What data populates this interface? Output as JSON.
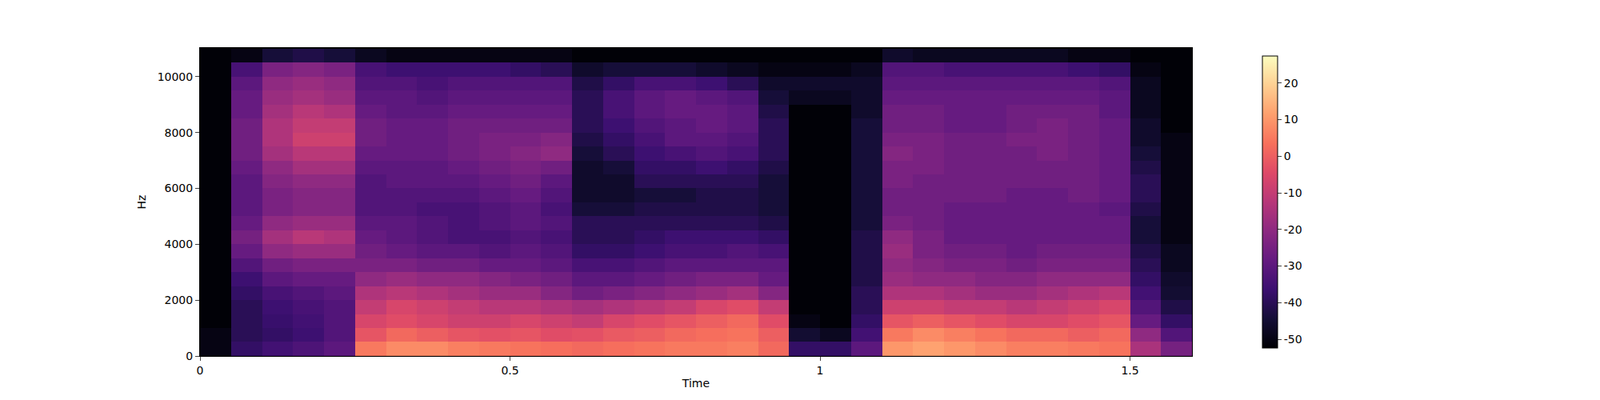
{
  "chart_data": {
    "type": "heatmap",
    "x_label": "Time",
    "y_label": "Hz",
    "xlim": [
      0,
      1.6
    ],
    "xticks": [
      0,
      0.5,
      1,
      1.5
    ],
    "ylim": [
      0,
      11025
    ],
    "yticks": [
      0,
      2000,
      4000,
      6000,
      8000,
      10000
    ],
    "colorbar_range": [
      -52.4,
      27.4
    ],
    "colorbar_ticks": [
      -50,
      -40,
      -30,
      -20,
      -10,
      0,
      10,
      20
    ],
    "x": [
      0.025,
      0.075,
      0.125,
      0.175,
      0.225,
      0.275,
      0.325,
      0.375,
      0.425,
      0.475,
      0.525,
      0.575,
      0.625,
      0.675,
      0.725,
      0.775,
      0.825,
      0.875,
      0.925,
      0.975,
      1.025,
      1.075,
      1.125,
      1.175,
      1.225,
      1.275,
      1.325,
      1.375,
      1.425,
      1.475,
      1.525,
      1.575
    ],
    "y": [
      250,
      750,
      1250,
      1750,
      2250,
      2750,
      3250,
      3750,
      4250,
      4750,
      5250,
      5750,
      6250,
      6750,
      7250,
      7750,
      8250,
      8750,
      9250,
      9750,
      10250,
      10750
    ],
    "z": [
      [
        -50,
        -38,
        -35,
        -33,
        -30,
        5,
        8,
        8,
        6,
        5,
        4,
        3,
        2,
        3,
        4,
        5,
        5,
        6,
        2,
        -38,
        -38,
        -30,
        10,
        12,
        10,
        8,
        6,
        6,
        5,
        4,
        -15,
        -25
      ],
      [
        -50,
        -40,
        -38,
        -36,
        -32,
        -2,
        2,
        0,
        -2,
        -3,
        -2,
        -4,
        -3,
        -1,
        0,
        2,
        3,
        4,
        0,
        -45,
        -48,
        -35,
        5,
        8,
        6,
        4,
        2,
        2,
        0,
        2,
        -20,
        -32
      ],
      [
        -52,
        -40,
        -37,
        -35,
        -32,
        -6,
        -4,
        -6,
        -8,
        -8,
        -6,
        -8,
        -10,
        -6,
        -4,
        -2,
        0,
        2,
        -4,
        -50,
        -52,
        -38,
        -2,
        0,
        -2,
        -4,
        -6,
        -6,
        -4,
        -2,
        -28,
        -38
      ],
      [
        -52,
        -40,
        -36,
        -34,
        -32,
        -10,
        -6,
        -8,
        -10,
        -12,
        -12,
        -14,
        -16,
        -14,
        -12,
        -10,
        -6,
        -4,
        -10,
        -52,
        -52,
        -40,
        -8,
        -8,
        -10,
        -10,
        -12,
        -10,
        -8,
        -6,
        -32,
        -42
      ],
      [
        -52,
        -38,
        -34,
        -32,
        -30,
        -14,
        -12,
        -14,
        -16,
        -18,
        -18,
        -22,
        -26,
        -24,
        -22,
        -20,
        -18,
        -16,
        -22,
        -52,
        -52,
        -40,
        -14,
        -14,
        -16,
        -18,
        -18,
        -16,
        -14,
        -12,
        -35,
        -45
      ],
      [
        -52,
        -36,
        -30,
        -28,
        -28,
        -20,
        -18,
        -20,
        -20,
        -22,
        -24,
        -26,
        -30,
        -30,
        -28,
        -26,
        -24,
        -24,
        -28,
        -52,
        -52,
        -42,
        -18,
        -20,
        -20,
        -22,
        -22,
        -20,
        -20,
        -20,
        -38,
        -46
      ],
      [
        -52,
        -32,
        -26,
        -24,
        -24,
        -24,
        -24,
        -26,
        -26,
        -28,
        -28,
        -30,
        -34,
        -34,
        -32,
        -30,
        -30,
        -30,
        -30,
        -52,
        -52,
        -42,
        -20,
        -22,
        -24,
        -24,
        -26,
        -24,
        -24,
        -24,
        -40,
        -48
      ],
      [
        -52,
        -28,
        -20,
        -18,
        -18,
        -26,
        -28,
        -30,
        -30,
        -32,
        -30,
        -32,
        -38,
        -38,
        -36,
        -34,
        -34,
        -32,
        -34,
        -52,
        -52,
        -42,
        -18,
        -24,
        -26,
        -26,
        -28,
        -26,
        -26,
        -26,
        -42,
        -48
      ],
      [
        -52,
        -25,
        -16,
        -12,
        -14,
        -28,
        -30,
        -32,
        -34,
        -34,
        -32,
        -34,
        -40,
        -40,
        -38,
        -36,
        -36,
        -36,
        -38,
        -52,
        -52,
        -42,
        -20,
        -24,
        -28,
        -28,
        -28,
        -28,
        -28,
        -28,
        -44,
        -50
      ],
      [
        -52,
        -28,
        -20,
        -18,
        -18,
        -30,
        -30,
        -32,
        -34,
        -32,
        -30,
        -32,
        -40,
        -40,
        -40,
        -40,
        -40,
        -40,
        -42,
        -52,
        -52,
        -44,
        -24,
        -26,
        -28,
        -28,
        -28,
        -28,
        -28,
        -28,
        -44,
        -50
      ],
      [
        -52,
        -30,
        -24,
        -22,
        -22,
        -32,
        -32,
        -34,
        -34,
        -32,
        -30,
        -34,
        -44,
        -44,
        -42,
        -42,
        -42,
        -42,
        -44,
        -52,
        -52,
        -44,
        -26,
        -26,
        -28,
        -28,
        -28,
        -28,
        -28,
        -30,
        -42,
        -50
      ],
      [
        -52,
        -30,
        -24,
        -22,
        -22,
        -32,
        -32,
        -32,
        -32,
        -30,
        -28,
        -32,
        -46,
        -46,
        -44,
        -44,
        -42,
        -42,
        -44,
        -52,
        -52,
        -44,
        -26,
        -26,
        -26,
        -26,
        -28,
        -28,
        -26,
        -28,
        -40,
        -50
      ],
      [
        -52,
        -30,
        -22,
        -20,
        -20,
        -32,
        -30,
        -30,
        -30,
        -28,
        -26,
        -30,
        -46,
        -46,
        -40,
        -40,
        -40,
        -40,
        -44,
        -52,
        -52,
        -44,
        -24,
        -26,
        -26,
        -26,
        -26,
        -26,
        -26,
        -28,
        -40,
        -50
      ],
      [
        -52,
        -28,
        -20,
        -16,
        -16,
        -30,
        -30,
        -30,
        -28,
        -26,
        -24,
        -26,
        -46,
        -44,
        -38,
        -38,
        -36,
        -38,
        -42,
        -52,
        -52,
        -44,
        -24,
        -24,
        -26,
        -26,
        -26,
        -26,
        -26,
        -28,
        -42,
        -50
      ],
      [
        -52,
        -26,
        -16,
        -12,
        -12,
        -28,
        -28,
        -28,
        -26,
        -24,
        -22,
        -20,
        -44,
        -40,
        -36,
        -34,
        -32,
        -34,
        -40,
        -52,
        -52,
        -44,
        -22,
        -24,
        -26,
        -26,
        -26,
        -24,
        -26,
        -28,
        -44,
        -50
      ],
      [
        -52,
        -26,
        -14,
        -8,
        -8,
        -26,
        -28,
        -28,
        -26,
        -24,
        -24,
        -22,
        -42,
        -38,
        -34,
        -30,
        -30,
        -32,
        -40,
        -52,
        -52,
        -44,
        -24,
        -24,
        -26,
        -26,
        -24,
        -24,
        -26,
        -28,
        -46,
        -50
      ],
      [
        -52,
        -26,
        -14,
        -10,
        -10,
        -26,
        -28,
        -28,
        -26,
        -26,
        -26,
        -26,
        -40,
        -36,
        -32,
        -30,
        -28,
        -30,
        -40,
        -52,
        -52,
        -44,
        -26,
        -26,
        -28,
        -28,
        -26,
        -24,
        -26,
        -28,
        -46,
        -52
      ],
      [
        -52,
        -28,
        -16,
        -12,
        -14,
        -28,
        -30,
        -30,
        -28,
        -28,
        -28,
        -28,
        -40,
        -34,
        -30,
        -28,
        -28,
        -30,
        -42,
        -52,
        -52,
        -46,
        -26,
        -26,
        -28,
        -28,
        -26,
        -26,
        -26,
        -30,
        -48,
        -52
      ],
      [
        -52,
        -28,
        -18,
        -16,
        -18,
        -30,
        -30,
        -32,
        -30,
        -30,
        -30,
        -30,
        -40,
        -34,
        -30,
        -28,
        -30,
        -32,
        -44,
        -48,
        -48,
        -46,
        -28,
        -28,
        -28,
        -28,
        -28,
        -28,
        -28,
        -30,
        -48,
        -52
      ],
      [
        -52,
        -30,
        -20,
        -18,
        -20,
        -32,
        -32,
        -34,
        -32,
        -32,
        -32,
        -32,
        -42,
        -38,
        -34,
        -34,
        -36,
        -40,
        -46,
        -46,
        -46,
        -46,
        -30,
        -30,
        -30,
        -30,
        -30,
        -30,
        -30,
        -32,
        -48,
        -52
      ],
      [
        -52,
        -34,
        -24,
        -22,
        -24,
        -34,
        -36,
        -36,
        -36,
        -36,
        -38,
        -40,
        -46,
        -44,
        -44,
        -44,
        -46,
        -48,
        -50,
        -50,
        -50,
        -48,
        -32,
        -32,
        -34,
        -34,
        -34,
        -34,
        -36,
        -38,
        -50,
        -52
      ],
      [
        -52,
        -50,
        -44,
        -42,
        -44,
        -48,
        -50,
        -50,
        -50,
        -50,
        -50,
        -50,
        -52,
        -52,
        -52,
        -52,
        -52,
        -52,
        -52,
        -52,
        -52,
        -52,
        -46,
        -48,
        -48,
        -48,
        -48,
        -48,
        -50,
        -50,
        -52,
        -52
      ]
    ]
  }
}
